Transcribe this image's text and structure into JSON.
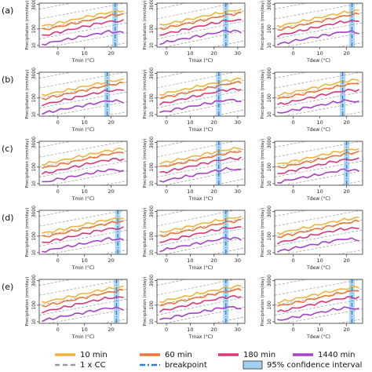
{
  "chart_data": {
    "type": "line",
    "layout": "5 rows x 3 columns of small multiple line panels",
    "row_labels": [
      "(a)",
      "(b)",
      "(c)",
      "(d)",
      "(e)"
    ],
    "columns": [
      {
        "xlabel": "Tmin (°C)",
        "xticks": [
          0,
          10,
          20
        ],
        "xlim": [
          -7,
          26
        ]
      },
      {
        "xlabel": "Tmax (°C)",
        "xticks": [
          0,
          10,
          20,
          30
        ],
        "xlim": [
          -4,
          33
        ]
      },
      {
        "xlabel": "Tdew (°C)",
        "xticks": [
          0,
          10,
          20
        ],
        "xlim": [
          -7,
          26
        ]
      }
    ],
    "ylabel": "Precipitation (mm/day)",
    "yscale": "log",
    "yticks": [
      10,
      100,
      3000
    ],
    "ylim": [
      8,
      3600
    ],
    "grid": false,
    "series": [
      {
        "name": "10 min",
        "color": "#f0b43c",
        "style": "solid"
      },
      {
        "name": "60 min",
        "color": "#e8783c",
        "style": "solid"
      },
      {
        "name": "180 min",
        "color": "#d8367a",
        "style": "solid"
      },
      {
        "name": "1440 min",
        "color": "#a640c4",
        "style": "solid"
      }
    ],
    "reference_lines": {
      "name": "1 x CC",
      "color": "#9a9a9a",
      "style": "dashed"
    },
    "breakpoint": {
      "name": "breakpoint",
      "color": "#2a7fd4",
      "style": "dashdot"
    },
    "ci": {
      "name": "95% confidence interval",
      "color": "#9fd0f2"
    },
    "breakpoints": [
      [
        21.5,
        25.0,
        22.0
      ],
      [
        18.5,
        22.0,
        18.5
      ],
      [
        null,
        22.0,
        20.0
      ],
      [
        22.5,
        25.0,
        null
      ],
      [
        22.0,
        25.0,
        22.0
      ]
    ],
    "curve_values": {
      "note": "approximate precipitation (mm/day) at evenly spaced x positions from xlim start to xlim end, per series",
      "x_fraction": [
        0.05,
        0.2,
        0.35,
        0.5,
        0.65,
        0.8,
        0.95
      ],
      "series": [
        {
          "name": "10 min",
          "values": [
            150,
            220,
            320,
            480,
            700,
            1000,
            1300
          ]
        },
        {
          "name": "60 min",
          "values": [
            90,
            130,
            190,
            280,
            420,
            620,
            800
          ]
        },
        {
          "name": "180 min",
          "values": [
            40,
            60,
            90,
            135,
            200,
            280,
            300
          ]
        },
        {
          "name": "1440 min",
          "values": [
            12,
            18,
            25,
            35,
            50,
            70,
            60
          ]
        }
      ]
    },
    "legend": {
      "placement": "bottom",
      "entries": [
        "10 min",
        "60 min",
        "180 min",
        "1440 min",
        "1 x CC",
        "breakpoint",
        "95% confidence interval"
      ]
    }
  }
}
